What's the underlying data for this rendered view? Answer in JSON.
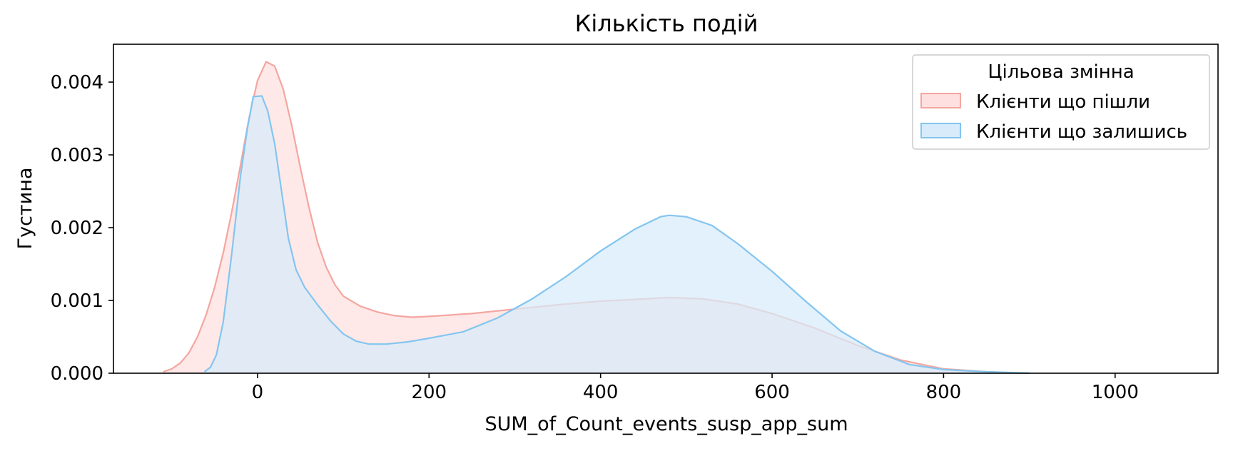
{
  "chart_data": {
    "type": "area",
    "title": "Кількість подій",
    "xlabel": "SUM_of_Count_events_susp_app_sum",
    "ylabel": "Густина",
    "xlim": [
      -168,
      1120
    ],
    "ylim": [
      0,
      0.00452
    ],
    "x_ticks": [
      0,
      200,
      400,
      600,
      800,
      1000
    ],
    "x_tick_labels": [
      "0",
      "200",
      "400",
      "600",
      "800",
      "1000"
    ],
    "y_ticks": [
      0,
      0.001,
      0.002,
      0.003,
      0.004
    ],
    "y_tick_labels": [
      "0.000",
      "0.001",
      "0.002",
      "0.003",
      "0.004"
    ],
    "grid": false,
    "legend": {
      "title": "Цільова змінна",
      "position": "top-right"
    },
    "series": [
      {
        "name": "Клієнти що пішли",
        "line_color": "#f4a6a0",
        "fill_color": "#fde0df",
        "points": [
          [
            -110,
            2e-05
          ],
          [
            -100,
            6e-05
          ],
          [
            -90,
            0.00014
          ],
          [
            -80,
            0.00028
          ],
          [
            -70,
            0.0005
          ],
          [
            -60,
            0.0008
          ],
          [
            -50,
            0.00118
          ],
          [
            -40,
            0.00165
          ],
          [
            -30,
            0.00222
          ],
          [
            -20,
            0.00285
          ],
          [
            -10,
            0.0035
          ],
          [
            0,
            0.00402
          ],
          [
            10,
            0.00428
          ],
          [
            20,
            0.00422
          ],
          [
            30,
            0.0039
          ],
          [
            40,
            0.0034
          ],
          [
            50,
            0.00282
          ],
          [
            60,
            0.00228
          ],
          [
            70,
            0.0018
          ],
          [
            80,
            0.00146
          ],
          [
            90,
            0.00122
          ],
          [
            100,
            0.00106
          ],
          [
            120,
            0.00092
          ],
          [
            140,
            0.00084
          ],
          [
            160,
            0.00079
          ],
          [
            180,
            0.00077
          ],
          [
            200,
            0.00078
          ],
          [
            250,
            0.00082
          ],
          [
            300,
            0.00088
          ],
          [
            350,
            0.00094
          ],
          [
            400,
            0.00099
          ],
          [
            450,
            0.00102
          ],
          [
            480,
            0.00104
          ],
          [
            520,
            0.00102
          ],
          [
            560,
            0.00095
          ],
          [
            600,
            0.00082
          ],
          [
            650,
            0.00062
          ],
          [
            700,
            0.00038
          ],
          [
            750,
            0.00018
          ],
          [
            800,
            6e-05
          ],
          [
            850,
            2e-05
          ],
          [
            900,
            0.0
          ]
        ]
      },
      {
        "name": "Клієнти що залишись",
        "line_color": "#84c5f0",
        "fill_color": "#d7ebfa",
        "points": [
          [
            -62,
            2e-05
          ],
          [
            -55,
            8e-05
          ],
          [
            -48,
            0.00025
          ],
          [
            -40,
            0.0007
          ],
          [
            -30,
            0.00165
          ],
          [
            -20,
            0.0027
          ],
          [
            -12,
            0.00335
          ],
          [
            -5,
            0.0038
          ],
          [
            5,
            0.00381
          ],
          [
            12,
            0.0036
          ],
          [
            20,
            0.00315
          ],
          [
            28,
            0.0025
          ],
          [
            36,
            0.00185
          ],
          [
            45,
            0.00142
          ],
          [
            55,
            0.00118
          ],
          [
            70,
            0.00094
          ],
          [
            85,
            0.00072
          ],
          [
            100,
            0.00054
          ],
          [
            115,
            0.00044
          ],
          [
            130,
            0.0004
          ],
          [
            150,
            0.0004
          ],
          [
            175,
            0.00043
          ],
          [
            200,
            0.00048
          ],
          [
            240,
            0.00057
          ],
          [
            280,
            0.00076
          ],
          [
            320,
            0.00102
          ],
          [
            360,
            0.00133
          ],
          [
            400,
            0.00168
          ],
          [
            440,
            0.00198
          ],
          [
            470,
            0.00215
          ],
          [
            480,
            0.00217
          ],
          [
            500,
            0.00215
          ],
          [
            530,
            0.00203
          ],
          [
            560,
            0.00178
          ],
          [
            600,
            0.0014
          ],
          [
            640,
            0.00098
          ],
          [
            680,
            0.00058
          ],
          [
            720,
            0.0003
          ],
          [
            760,
            0.00012
          ],
          [
            800,
            5e-05
          ],
          [
            850,
            2e-05
          ],
          [
            900,
            0.0
          ]
        ]
      }
    ]
  }
}
